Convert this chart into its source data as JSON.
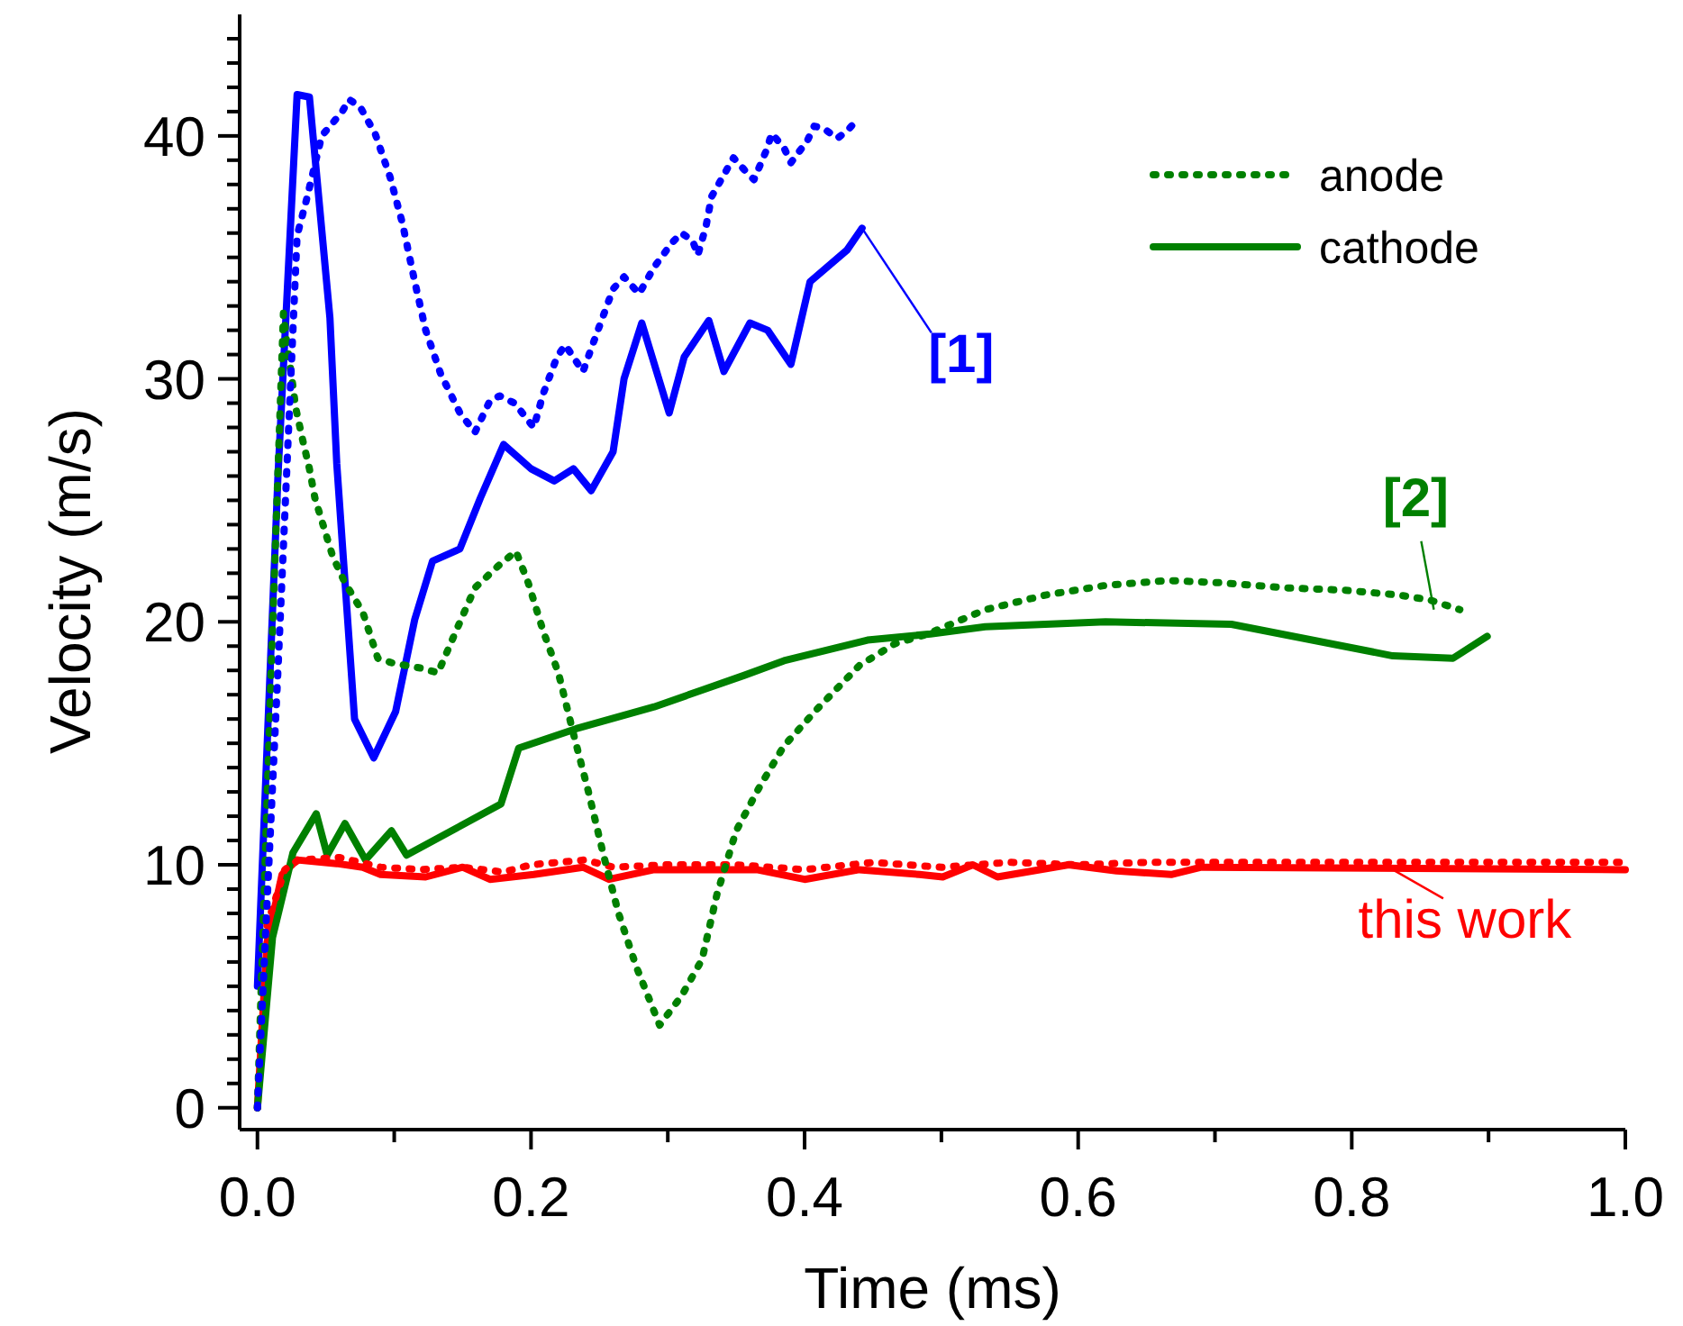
{
  "chart_data": {
    "type": "line",
    "xlabel": "Time (ms)",
    "ylabel": "Velocity (m/s)",
    "xlim": [
      -0.013,
      1.0
    ],
    "ylim": [
      -0.9,
      45
    ],
    "xticks": [
      {
        "value": 0,
        "label": "0.0"
      },
      {
        "value": 0.1,
        "label": null
      },
      {
        "value": 0.2,
        "label": "0.2"
      },
      {
        "value": 0.3,
        "label": null
      },
      {
        "value": 0.4,
        "label": "0.4"
      },
      {
        "value": 0.5,
        "label": null
      },
      {
        "value": 0.6,
        "label": "0.6"
      },
      {
        "value": 0.7,
        "label": null
      },
      {
        "value": 0.8,
        "label": "0.8"
      },
      {
        "value": 0.9,
        "label": null
      },
      {
        "value": 1.0,
        "label": "1.0"
      }
    ],
    "yticks": [
      0,
      {
        "value": 1,
        "label": null
      },
      {
        "value": 2,
        "label": null
      },
      {
        "value": 3,
        "label": null
      },
      {
        "value": 4,
        "label": null
      },
      {
        "value": 5,
        "label": null
      },
      {
        "value": 6,
        "label": null
      },
      {
        "value": 7,
        "label": null
      },
      {
        "value": 8,
        "label": null
      },
      {
        "value": 9,
        "label": null
      },
      10,
      {
        "value": 11,
        "label": null
      },
      {
        "value": 12,
        "label": null
      },
      {
        "value": 13,
        "label": null
      },
      {
        "value": 14,
        "label": null
      },
      {
        "value": 15,
        "label": null
      },
      {
        "value": 16,
        "label": null
      },
      {
        "value": 17,
        "label": null
      },
      {
        "value": 18,
        "label": null
      },
      {
        "value": 19,
        "label": null
      },
      20,
      {
        "value": 21,
        "label": null
      },
      {
        "value": 22,
        "label": null
      },
      {
        "value": 23,
        "label": null
      },
      {
        "value": 24,
        "label": null
      },
      {
        "value": 25,
        "label": null
      },
      {
        "value": 26,
        "label": null
      },
      {
        "value": 27,
        "label": null
      },
      {
        "value": 28,
        "label": null
      },
      {
        "value": 29,
        "label": null
      },
      30,
      {
        "value": 31,
        "label": null
      },
      {
        "value": 32,
        "label": null
      },
      {
        "value": 33,
        "label": null
      },
      {
        "value": 34,
        "label": null
      },
      {
        "value": 35,
        "label": null
      },
      {
        "value": 36,
        "label": null
      },
      {
        "value": 37,
        "label": null
      },
      {
        "value": 38,
        "label": null
      },
      {
        "value": 39,
        "label": null
      },
      40,
      {
        "value": 41,
        "label": null
      },
      {
        "value": 42,
        "label": null
      },
      {
        "value": 43,
        "label": null
      },
      {
        "value": 44,
        "label": null
      }
    ],
    "grid": false,
    "legend": "top right",
    "marker": "none",
    "series": [
      {
        "color": "#0000ff",
        "line_style": "dotted",
        "x": [
          0,
          0.015,
          0.029,
          0.036,
          0.047,
          0.062,
          0.067,
          0.075,
          0.086,
          0.097,
          0.106,
          0.115,
          0.123,
          0.134,
          0.148,
          0.159,
          0.17,
          0.177,
          0.188,
          0.202,
          0.209,
          0.219,
          0.225,
          0.238,
          0.245,
          0.26,
          0.268,
          0.279,
          0.29,
          0.303,
          0.31,
          0.318,
          0.322,
          0.328,
          0.332,
          0.343,
          0.348,
          0.356,
          0.363,
          0.372,
          0.376,
          0.385,
          0.39,
          0.402,
          0.407,
          0.414,
          0.424,
          0.431,
          0.439
        ],
        "values": [
          0,
          18,
          35.9,
          37.4,
          40.0,
          41.0,
          41.5,
          41.2,
          40.1,
          38.3,
          36.4,
          34.0,
          32.0,
          30.2,
          28.6,
          27.8,
          29.1,
          29.3,
          29.0,
          28.0,
          29.4,
          30.9,
          31.4,
          30.3,
          31.4,
          33.7,
          34.2,
          33.5,
          34.6,
          35.6,
          36.0,
          35.7,
          35.1,
          36.3,
          37.5,
          38.6,
          39.1,
          38.6,
          38.2,
          39.4,
          40.1,
          39.5,
          38.9,
          39.8,
          40.4,
          40.3,
          39.9,
          40.2,
          40.7
        ]
      },
      {
        "color": "#0000ff",
        "line_style": "solid",
        "x": [
          0,
          0.015,
          0.029,
          0.038,
          0.053,
          0.058,
          0.071,
          0.085,
          0.101,
          0.115,
          0.128,
          0.148,
          0.163,
          0.18,
          0.2,
          0.217,
          0.231,
          0.244,
          0.26,
          0.268,
          0.281,
          0.301,
          0.312,
          0.33,
          0.341,
          0.36,
          0.373,
          0.39,
          0.404,
          0.431,
          0.442
        ],
        "values": [
          5,
          26,
          41.7,
          41.6,
          32.5,
          26.5,
          16.0,
          14.4,
          16.3,
          20.1,
          22.5,
          23.0,
          25.1,
          27.3,
          26.3,
          25.8,
          26.3,
          25.4,
          27.0,
          30.0,
          32.3,
          28.6,
          30.9,
          32.4,
          30.3,
          32.3,
          32.0,
          30.6,
          34.0,
          35.3,
          36.2
        ]
      },
      {
        "name": "anode",
        "color": "#008000",
        "line_style": "dotted",
        "x": [
          0,
          0.01,
          0.019,
          0.021,
          0.025,
          0.028,
          0.033,
          0.038,
          0.042,
          0.049,
          0.055,
          0.064,
          0.077,
          0.088,
          0.099,
          0.119,
          0.132,
          0.145,
          0.159,
          0.176,
          0.189,
          0.198,
          0.209,
          0.22,
          0.231,
          0.242,
          0.253,
          0.264,
          0.277,
          0.294,
          0.31,
          0.325,
          0.336,
          0.35,
          0.367,
          0.385,
          0.409,
          0.44,
          0.466,
          0.49,
          0.532,
          0.576,
          0.62,
          0.666,
          0.707,
          0.751,
          0.795,
          0.835,
          0.857,
          0.879
        ],
        "values": [
          0,
          18,
          32.7,
          31.7,
          30.1,
          28.8,
          27.5,
          26.3,
          25.1,
          23.8,
          22.7,
          21.6,
          20.4,
          18.5,
          18.3,
          18.1,
          17.9,
          19.6,
          21.4,
          22.3,
          22.9,
          21.6,
          19.6,
          17.9,
          15.4,
          13.0,
          10.4,
          8.0,
          5.8,
          3.4,
          4.6,
          6.1,
          8.8,
          11.4,
          13.2,
          14.9,
          16.4,
          18.2,
          19.1,
          19.5,
          20.5,
          21.1,
          21.5,
          21.7,
          21.6,
          21.4,
          21.3,
          21.1,
          20.9,
          20.5
        ]
      },
      {
        "name": "cathode",
        "color": "#008000",
        "line_style": "solid",
        "x": [
          0,
          0.011,
          0.026,
          0.043,
          0.051,
          0.064,
          0.079,
          0.098,
          0.109,
          0.178,
          0.191,
          0.233,
          0.29,
          0.356,
          0.385,
          0.446,
          0.492,
          0.532,
          0.62,
          0.712,
          0.83,
          0.874,
          0.899
        ],
        "values": [
          0,
          7.0,
          10.5,
          12.1,
          10.4,
          11.7,
          10.2,
          11.4,
          10.4,
          12.5,
          14.8,
          15.6,
          16.5,
          17.8,
          18.4,
          19.25,
          19.5,
          19.8,
          20.0,
          19.9,
          18.6,
          18.5,
          19.4
        ]
      },
      {
        "color": "#ff0000",
        "line_style": "dotted",
        "x": [
          0.007,
          0.02,
          0.03,
          0.06,
          0.09,
          0.12,
          0.15,
          0.18,
          0.2,
          0.24,
          0.26,
          0.3,
          0.35,
          0.4,
          0.45,
          0.5,
          0.55,
          0.6,
          0.65,
          0.7,
          0.8,
          0.9,
          1.0
        ],
        "values": [
          7.5,
          9.8,
          10.2,
          10.3,
          9.9,
          9.8,
          9.9,
          9.7,
          10.0,
          10.2,
          9.9,
          10.0,
          10.0,
          9.8,
          10.1,
          9.9,
          10.1,
          10.0,
          10.1,
          10.1,
          10.1,
          10.1,
          10.1
        ]
      },
      {
        "color": "#ff0000",
        "line_style": "solid",
        "x": [
          0,
          0.007,
          0.018,
          0.029,
          0.058,
          0.077,
          0.09,
          0.123,
          0.15,
          0.17,
          0.202,
          0.238,
          0.257,
          0.29,
          0.365,
          0.4,
          0.44,
          0.484,
          0.501,
          0.523,
          0.541,
          0.593,
          0.628,
          0.668,
          0.69,
          1.0
        ],
        "values": [
          0,
          6.8,
          9.6,
          10.2,
          10.05,
          9.9,
          9.6,
          9.5,
          9.9,
          9.4,
          9.6,
          9.9,
          9.4,
          9.8,
          9.8,
          9.4,
          9.8,
          9.6,
          9.5,
          10.0,
          9.5,
          10.0,
          9.75,
          9.6,
          9.9,
          9.8
        ]
      }
    ],
    "annotations": [
      {
        "text": "[1]",
        "x": 0.442,
        "y": 36.2
      },
      {
        "text": "[2]",
        "x": 0.86,
        "y": 20.5
      },
      {
        "text": "this work",
        "x": 0.83,
        "y": 9.8
      }
    ]
  }
}
